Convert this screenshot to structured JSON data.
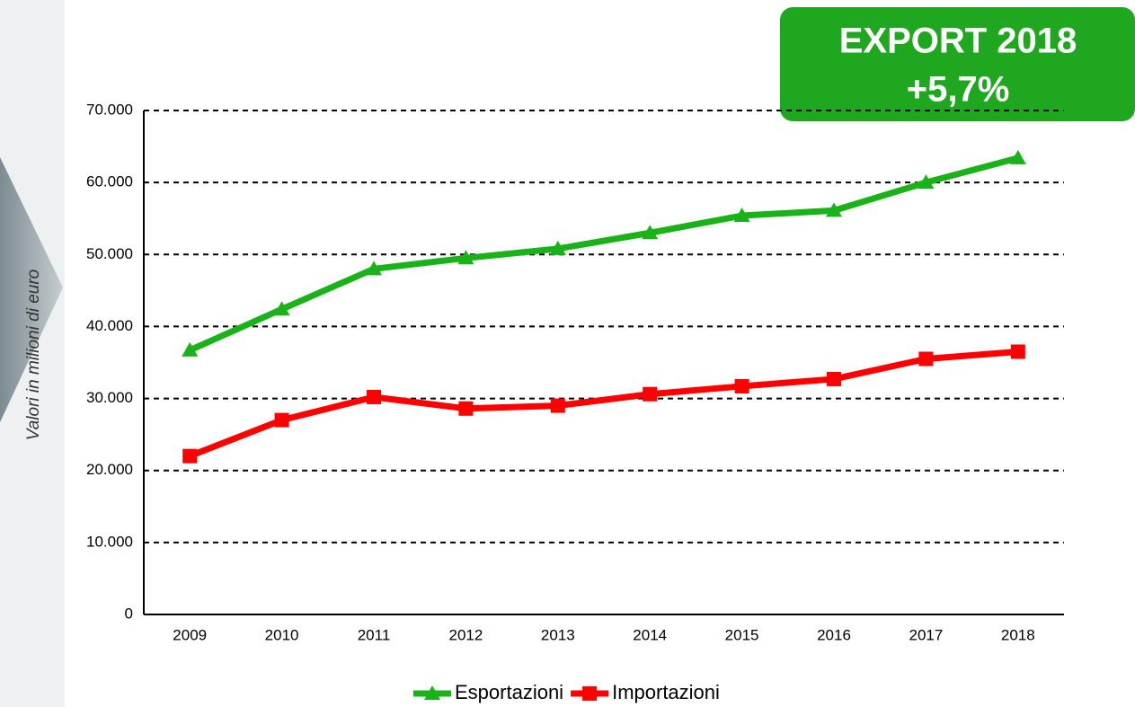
{
  "chart_data": {
    "type": "line",
    "y_axis_label": "Valori in milioni di euro",
    "annotation": {
      "title": "EXPORT 2018",
      "value": "+5,7%"
    },
    "categories": [
      "2009",
      "2010",
      "2011",
      "2012",
      "2013",
      "2014",
      "2015",
      "2016",
      "2017",
      "2018"
    ],
    "series": [
      {
        "name": "Esportazioni",
        "color": "#19b219",
        "marker": "triangle",
        "values": [
          36700,
          42400,
          48000,
          49500,
          50800,
          53000,
          55400,
          56100,
          60000,
          63400
        ]
      },
      {
        "name": "Importazioni",
        "color": "#ff0000",
        "marker": "square",
        "values": [
          22000,
          27000,
          30200,
          28600,
          29000,
          30600,
          31700,
          32700,
          35500,
          36500
        ]
      }
    ],
    "ylim": [
      0,
      70000
    ],
    "yticks": [
      0,
      {
        "value": 10000,
        "label": "10.000"
      },
      {
        "value": 20000,
        "label": "20.000"
      },
      {
        "value": 30000,
        "label": "30.000"
      },
      {
        "value": 40000,
        "label": "40.000"
      },
      {
        "value": 50000,
        "label": "50.000"
      },
      {
        "value": 60000,
        "label": "60.000"
      },
      {
        "value": 70000,
        "label": "70.000"
      }
    ],
    "grid": true
  }
}
